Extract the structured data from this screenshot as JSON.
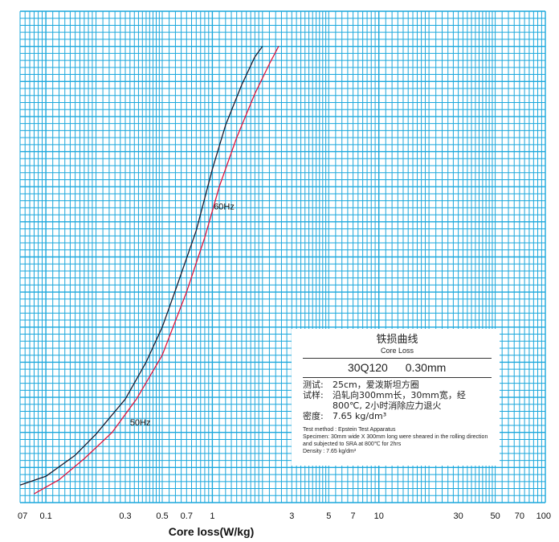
{
  "chart_data": {
    "type": "line",
    "xscale": "log",
    "xlabel": "Core loss(W/kg)",
    "xlim": [
      0.07,
      100
    ],
    "x_ticks": [
      "07",
      "0.1",
      "0.3",
      "0.5",
      "0.7",
      "1",
      "3",
      "5",
      "7",
      "10",
      "30",
      "50",
      "70",
      "100"
    ],
    "grid": true,
    "grid_color": "#1aa7dc",
    "series": [
      {
        "name": "50Hz",
        "color": "#1a1a2e",
        "label_at": [
          0.32,
          0.44
        ],
        "points": [
          [
            0.07,
            0.1
          ],
          [
            0.1,
            0.15
          ],
          [
            0.15,
            0.27
          ],
          [
            0.2,
            0.39
          ],
          [
            0.3,
            0.59
          ],
          [
            0.4,
            0.8
          ],
          [
            0.5,
            1.0
          ],
          [
            0.6,
            1.21
          ],
          [
            0.8,
            1.55
          ],
          [
            1.0,
            1.9
          ],
          [
            1.2,
            2.15
          ],
          [
            1.5,
            2.38
          ],
          [
            1.8,
            2.54
          ],
          [
            2.0,
            2.6
          ]
        ]
      },
      {
        "name": "60Hz",
        "color": "#e0143c",
        "label_at": [
          1.02,
          1.67
        ],
        "points": [
          [
            0.085,
            0.05
          ],
          [
            0.12,
            0.13
          ],
          [
            0.17,
            0.25
          ],
          [
            0.25,
            0.4
          ],
          [
            0.35,
            0.59
          ],
          [
            0.5,
            0.84
          ],
          [
            0.7,
            1.2
          ],
          [
            0.9,
            1.51
          ],
          [
            1.1,
            1.8
          ],
          [
            1.4,
            2.08
          ],
          [
            1.8,
            2.33
          ],
          [
            2.2,
            2.5
          ],
          [
            2.5,
            2.6
          ]
        ]
      }
    ]
  },
  "legend": {
    "title_cn": "铁损曲线",
    "title_en": "Core Loss",
    "grade": "30Q120 0.30mm",
    "cn_lines": [
      {
        "label": "测试:",
        "value": "25cm，爱泼斯坦方圈"
      },
      {
        "label": "试样:",
        "value": "沿轧向300mm长，30mm宽，经800℃, 2小时消除应力退火"
      },
      {
        "label": "密度:",
        "value": "7.65 kg/dm³"
      }
    ],
    "en_lines": [
      "Test method : Epstein Test Apparatus",
      "Specimen: 30mm wide X 300mm long were sheared in the rolling direction and subjected to SRA at 800℃ for 2hrs",
      "Density : 7.65 kg/dm³"
    ]
  }
}
